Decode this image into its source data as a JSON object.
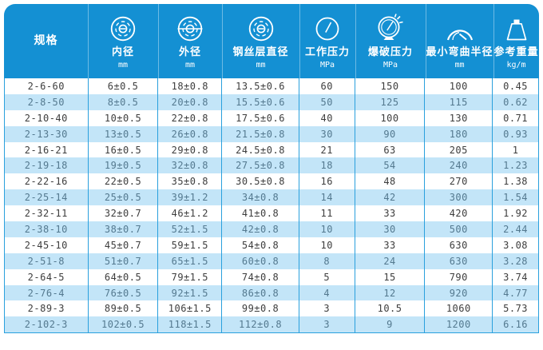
{
  "colors": {
    "header_bg": "#1490d3",
    "header_text": "#ffffff",
    "row_bg": "#ffffff",
    "row_alt_bg": "#c3e5f8",
    "row_text": "#3d3d3d",
    "row_alt_text": "#54798f",
    "grid_border": "#2aa0dd"
  },
  "table": {
    "columns": [
      {
        "label": "规格",
        "unit": "",
        "icon": ""
      },
      {
        "label": "内径",
        "unit": "mm",
        "icon": "inner-diameter-icon"
      },
      {
        "label": "外径",
        "unit": "mm",
        "icon": "outer-diameter-icon"
      },
      {
        "label": "钢丝层直径",
        "unit": "mm",
        "icon": "wire-layer-diameter-icon"
      },
      {
        "label": "工作压力",
        "unit": "MPa",
        "icon": "working-pressure-gauge-icon"
      },
      {
        "label": "爆破压力",
        "unit": "MPa",
        "icon": "burst-pressure-gauge-icon"
      },
      {
        "label": "最小弯曲半径",
        "unit": "mm",
        "icon": "bend-radius-icon"
      },
      {
        "label": "参考重量",
        "unit": "kg/m",
        "icon": "weight-icon"
      }
    ]
  },
  "chart_data": {
    "type": "table",
    "title": "",
    "columns": [
      "规格",
      "内径 (mm)",
      "外径 (mm)",
      "钢丝层直径 (mm)",
      "工作压力 (MPa)",
      "爆破压力 (MPa)",
      "最小弯曲半径 (mm)",
      "参考重量 (kg/m)"
    ],
    "rows": [
      [
        "2-6-60",
        "6±0.5",
        "18±0.8",
        "13.5±0.6",
        "60",
        "150",
        "100",
        "0.45"
      ],
      [
        "2-8-50",
        "8±0.5",
        "20±0.8",
        "15.5±0.6",
        "50",
        "125",
        "115",
        "0.62"
      ],
      [
        "2-10-40",
        "10±0.5",
        "22±0.8",
        "17.5±0.6",
        "40",
        "100",
        "130",
        "0.71"
      ],
      [
        "2-13-30",
        "13±0.5",
        "26±0.8",
        "21.5±0.8",
        "30",
        "90",
        "180",
        "0.93"
      ],
      [
        "2-16-21",
        "16±0.5",
        "29±0.8",
        "24.5±0.8",
        "21",
        "63",
        "205",
        "1"
      ],
      [
        "2-19-18",
        "19±0.5",
        "32±0.8",
        "27.5±0.8",
        "18",
        "54",
        "240",
        "1.23"
      ],
      [
        "2-22-16",
        "22±0.5",
        "35±0.8",
        "30.5±0.8",
        "16",
        "48",
        "270",
        "1.38"
      ],
      [
        "2-25-14",
        "25±0.5",
        "39±1.2",
        "34±0.8",
        "14",
        "42",
        "300",
        "1.54"
      ],
      [
        "2-32-11",
        "32±0.7",
        "46±1.2",
        "41±0.8",
        "11",
        "33",
        "420",
        "1.92"
      ],
      [
        "2-38-10",
        "38±0.7",
        "52±1.5",
        "42±0.8",
        "10",
        "30",
        "500",
        "2.44"
      ],
      [
        "2-45-10",
        "45±0.7",
        "59±1.5",
        "54±0.8",
        "10",
        "33",
        "630",
        "3.08"
      ],
      [
        "2-51-8",
        "51±0.7",
        "65±1.5",
        "60±0.8",
        "8",
        "24",
        "630",
        "3.28"
      ],
      [
        "2-64-5",
        "64±0.5",
        "79±1.5",
        "74±0.8",
        "5",
        "15",
        "790",
        "3.74"
      ],
      [
        "2-76-4",
        "76±0.5",
        "92±1.5",
        "86±0.8",
        "4",
        "12",
        "920",
        "4.77"
      ],
      [
        "2-89-3",
        "89±0.5",
        "106±1.5",
        "99±0.8",
        "3",
        "10.5",
        "1060",
        "5.73"
      ],
      [
        "2-102-3",
        "102±0.5",
        "118±1.5",
        "112±0.8",
        "3",
        "9",
        "1200",
        "6.16"
      ]
    ]
  }
}
